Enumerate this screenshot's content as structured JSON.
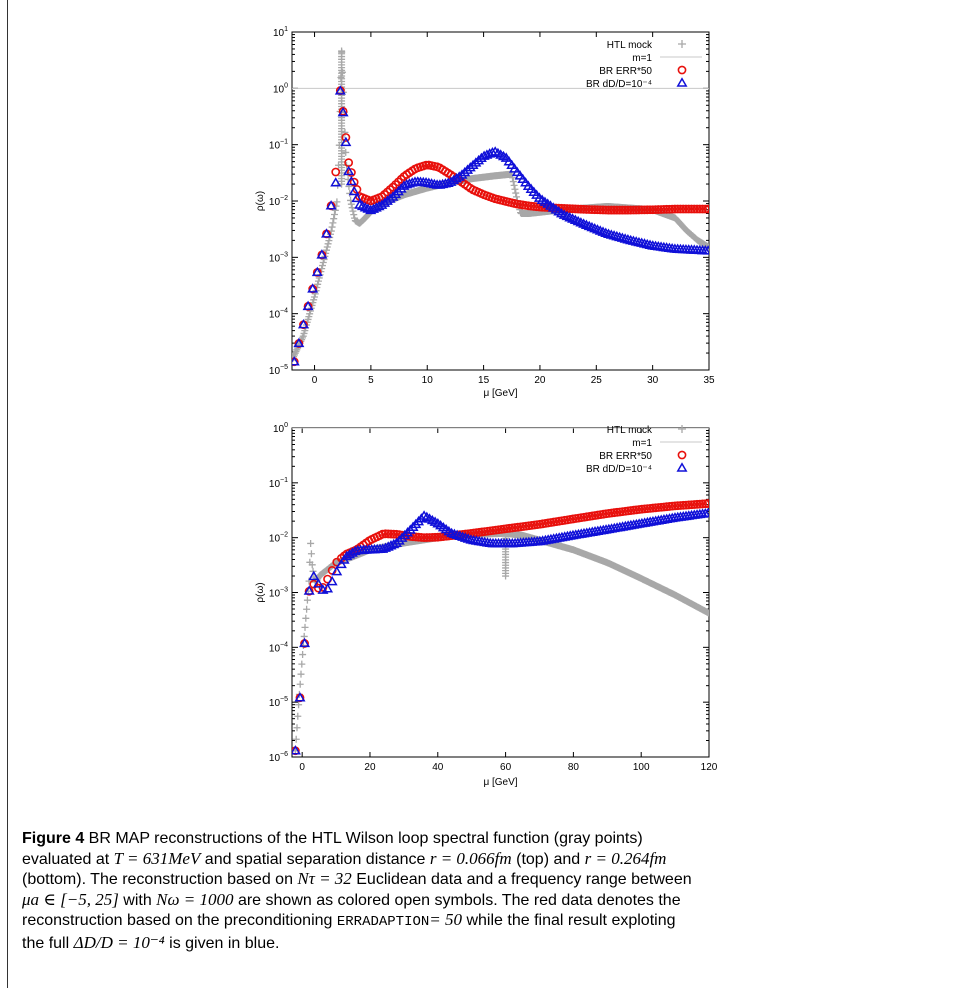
{
  "figure": {
    "label": "Figure 4",
    "caption_lines": [
      [
        {
          "t": "text",
          "v": " BR MAP reconstructions of the HTL Wilson loop spectral function (gray points)"
        }
      ],
      [
        {
          "t": "text",
          "v": "evaluated at "
        },
        {
          "t": "math",
          "v": "T = 631MeV"
        },
        {
          "t": "text",
          "v": " and spatial separation distance "
        },
        {
          "t": "math",
          "v": "r = 0.066fm"
        },
        {
          "t": "text",
          "v": " (top) and "
        },
        {
          "t": "math",
          "v": "r = 0.264fm"
        }
      ],
      [
        {
          "t": "text",
          "v": "(bottom). The reconstruction based on "
        },
        {
          "t": "math",
          "v": "Nτ = 32"
        },
        {
          "t": "text",
          "v": " Euclidean data and a frequency range between"
        }
      ],
      [
        {
          "t": "math",
          "v": "μa ∈ [−5, 25]"
        },
        {
          "t": "text",
          "v": " with "
        },
        {
          "t": "math",
          "v": "Nω = 1000"
        },
        {
          "t": "text",
          "v": " are shown as colored open symbols. The red data denotes the"
        }
      ],
      [
        {
          "t": "text",
          "v": "reconstruction based on the preconditioning "
        },
        {
          "t": "mono",
          "v": "ERRADAPTION"
        },
        {
          "t": "math",
          "v": "= 50"
        },
        {
          "t": "text",
          "v": " while the final result exploting"
        }
      ],
      [
        {
          "t": "text",
          "v": "the full "
        },
        {
          "t": "math",
          "v": "ΔD/D = 10⁻⁴"
        },
        {
          "t": "text",
          "v": " is given in blue."
        }
      ]
    ]
  },
  "colors": {
    "gray": "#a8a8a8",
    "red": "#e8100c",
    "blue": "#1010d8",
    "line": "#c8c8c8"
  },
  "chart_data": [
    {
      "type": "scatter",
      "panel": "top",
      "ylog": true,
      "xlim": [
        -2,
        35
      ],
      "ylim_exp": [
        -5,
        1
      ],
      "xticks": [
        0,
        5,
        10,
        15,
        20,
        25,
        30,
        35
      ],
      "yticks_exp": [
        -5,
        -4,
        -3,
        -2,
        -1,
        0,
        1
      ],
      "xlabel": "μ [GeV]",
      "ylabel": "ρ(ω)",
      "legend_position": "top-right",
      "legend": [
        "HTL mock",
        "m=1",
        "BR ERR*50",
        "BR dD/D=10⁻⁴"
      ],
      "reference_line": 1,
      "series": [
        {
          "name": "HTL mock",
          "marker": "plus",
          "color": "gray",
          "x": [
            -2,
            -1,
            0,
            0.5,
            1,
            1.5,
            2,
            2.2,
            2.4,
            2.6,
            2.8,
            3.2,
            3.6,
            4,
            4.5,
            5,
            6,
            8,
            10,
            12,
            14,
            16,
            17.5,
            18,
            18.3,
            19,
            22,
            26,
            30,
            32,
            33,
            34,
            35
          ],
          "y": [
            1.5e-05,
            4e-05,
            0.0002,
            0.0005,
            0.0012,
            0.003,
            0.01,
            0.1,
            5,
            0.5,
            0.05,
            0.01,
            0.0045,
            0.004,
            0.005,
            0.0065,
            0.009,
            0.013,
            0.017,
            0.021,
            0.025,
            0.028,
            0.03,
            0.01,
            0.006,
            0.006,
            0.007,
            0.008,
            0.007,
            0.005,
            0.003,
            0.002,
            0.0015
          ]
        },
        {
          "name": "BR ERR*50",
          "marker": "circle",
          "color": "red",
          "x": [
            -1.8,
            -1.3,
            -0.8,
            -0.3,
            0.2,
            0.7,
            1.2,
            1.5,
            1.9,
            2.3,
            2.6,
            3,
            3.5,
            4,
            5,
            6,
            7,
            8,
            9,
            10,
            11,
            12,
            13,
            14,
            15,
            16,
            17,
            18,
            19,
            20,
            22,
            24,
            26,
            28,
            30,
            32,
            35
          ],
          "y": [
            1.4e-05,
            3.5e-05,
            9e-05,
            0.00022,
            0.0005,
            0.0012,
            0.0035,
            0.009,
            0.035,
            1,
            0.3,
            0.05,
            0.022,
            0.012,
            0.01,
            0.012,
            0.018,
            0.028,
            0.038,
            0.044,
            0.04,
            0.03,
            0.022,
            0.016,
            0.013,
            0.011,
            0.0098,
            0.0088,
            0.0082,
            0.0078,
            0.0074,
            0.0071,
            0.0069,
            0.0069,
            0.007,
            0.0072,
            0.0072
          ]
        },
        {
          "name": "BR dD/D=10⁻⁴",
          "marker": "triangle",
          "color": "blue",
          "x": [
            -1.8,
            -1.3,
            -0.8,
            -0.3,
            0.2,
            0.7,
            1.2,
            1.5,
            1.9,
            2.3,
            2.6,
            3,
            3.5,
            4,
            5,
            6,
            7,
            8,
            9,
            10,
            11,
            12,
            13,
            14,
            15,
            16,
            17,
            18,
            19,
            20,
            22,
            24,
            26,
            28,
            30,
            32,
            35
          ],
          "y": [
            1.4e-05,
            3.5e-05,
            9e-05,
            0.00022,
            0.0005,
            0.0012,
            0.0035,
            0.009,
            0.022,
            1,
            0.28,
            0.035,
            0.015,
            0.0085,
            0.0068,
            0.0085,
            0.012,
            0.019,
            0.022,
            0.021,
            0.019,
            0.021,
            0.028,
            0.042,
            0.062,
            0.075,
            0.058,
            0.032,
            0.018,
            0.011,
            0.0058,
            0.0038,
            0.0026,
            0.002,
            0.0016,
            0.0014,
            0.0013
          ]
        }
      ]
    },
    {
      "type": "scatter",
      "panel": "bottom",
      "ylog": true,
      "xlim": [
        -3,
        120
      ],
      "ylim_exp": [
        -6,
        0
      ],
      "xticks": [
        0,
        20,
        40,
        60,
        80,
        100,
        120
      ],
      "yticks_exp": [
        -6,
        -5,
        -4,
        -3,
        -2,
        -1,
        0
      ],
      "xlabel": "μ [GeV]",
      "ylabel": "ρ(ω)",
      "legend_position": "top-right",
      "legend": [
        "HTL mock",
        "m=1",
        "BR ERR*50",
        "BR dD/D=10⁻⁴"
      ],
      "reference_line": 1,
      "series": [
        {
          "name": "HTL mock",
          "marker": "plus",
          "color": "gray",
          "x": [
            -2,
            -1,
            0,
            1,
            2,
            2.5,
            3,
            3.5,
            4,
            5,
            7,
            10,
            15,
            20,
            30,
            40,
            50,
            60,
            65,
            70,
            80,
            90,
            100,
            110,
            120
          ],
          "y": [
            1.3e-06,
            1e-05,
            6e-05,
            0.0003,
            0.0015,
            0.008,
            0.003,
            0.0018,
            0.0015,
            0.002,
            0.0025,
            0.0035,
            0.0045,
            0.006,
            0.008,
            0.01,
            0.0115,
            0.012,
            0.011,
            0.009,
            0.006,
            0.0035,
            0.0018,
            0.0009,
            0.00042
          ]
        },
        {
          "name": "BR ERR*50",
          "marker": "circle",
          "color": "red",
          "x": [
            -2,
            -1.5,
            -1,
            -0.5,
            0,
            0.5,
            1,
            1.5,
            2,
            2.5,
            3,
            4,
            6,
            8,
            10,
            13,
            16,
            20,
            24,
            28,
            32,
            36,
            40,
            50,
            60,
            70,
            80,
            90,
            100,
            110,
            120
          ],
          "y": [
            1.3e-06,
            3e-06,
            7e-06,
            1.5e-05,
            3.5e-05,
            8e-05,
            0.0002,
            0.0005,
            0.001,
            0.0015,
            0.0016,
            0.0012,
            0.0012,
            0.002,
            0.0035,
            0.005,
            0.006,
            0.009,
            0.0118,
            0.0115,
            0.0105,
            0.01,
            0.0102,
            0.012,
            0.0145,
            0.0175,
            0.022,
            0.0275,
            0.033,
            0.038,
            0.042
          ]
        },
        {
          "name": "BR dD/D=10⁻⁴",
          "marker": "triangle",
          "color": "blue",
          "x": [
            -2,
            -1.5,
            -1,
            -0.5,
            0,
            0.5,
            1,
            1.5,
            2,
            2.5,
            3,
            4,
            6,
            8,
            10,
            13,
            16,
            20,
            24,
            28,
            32,
            36,
            40,
            44,
            50,
            56,
            62,
            70,
            80,
            90,
            100,
            110,
            120
          ],
          "y": [
            1.3e-06,
            3e-06,
            7e-06,
            1.5e-05,
            3.5e-05,
            8e-05,
            0.0002,
            0.0005,
            0.001,
            0.0016,
            0.0022,
            0.0017,
            0.0011,
            0.0012,
            0.0023,
            0.0045,
            0.0058,
            0.006,
            0.0062,
            0.008,
            0.014,
            0.025,
            0.018,
            0.012,
            0.009,
            0.0078,
            0.0078,
            0.0085,
            0.011,
            0.014,
            0.018,
            0.023,
            0.028
          ]
        }
      ]
    }
  ]
}
